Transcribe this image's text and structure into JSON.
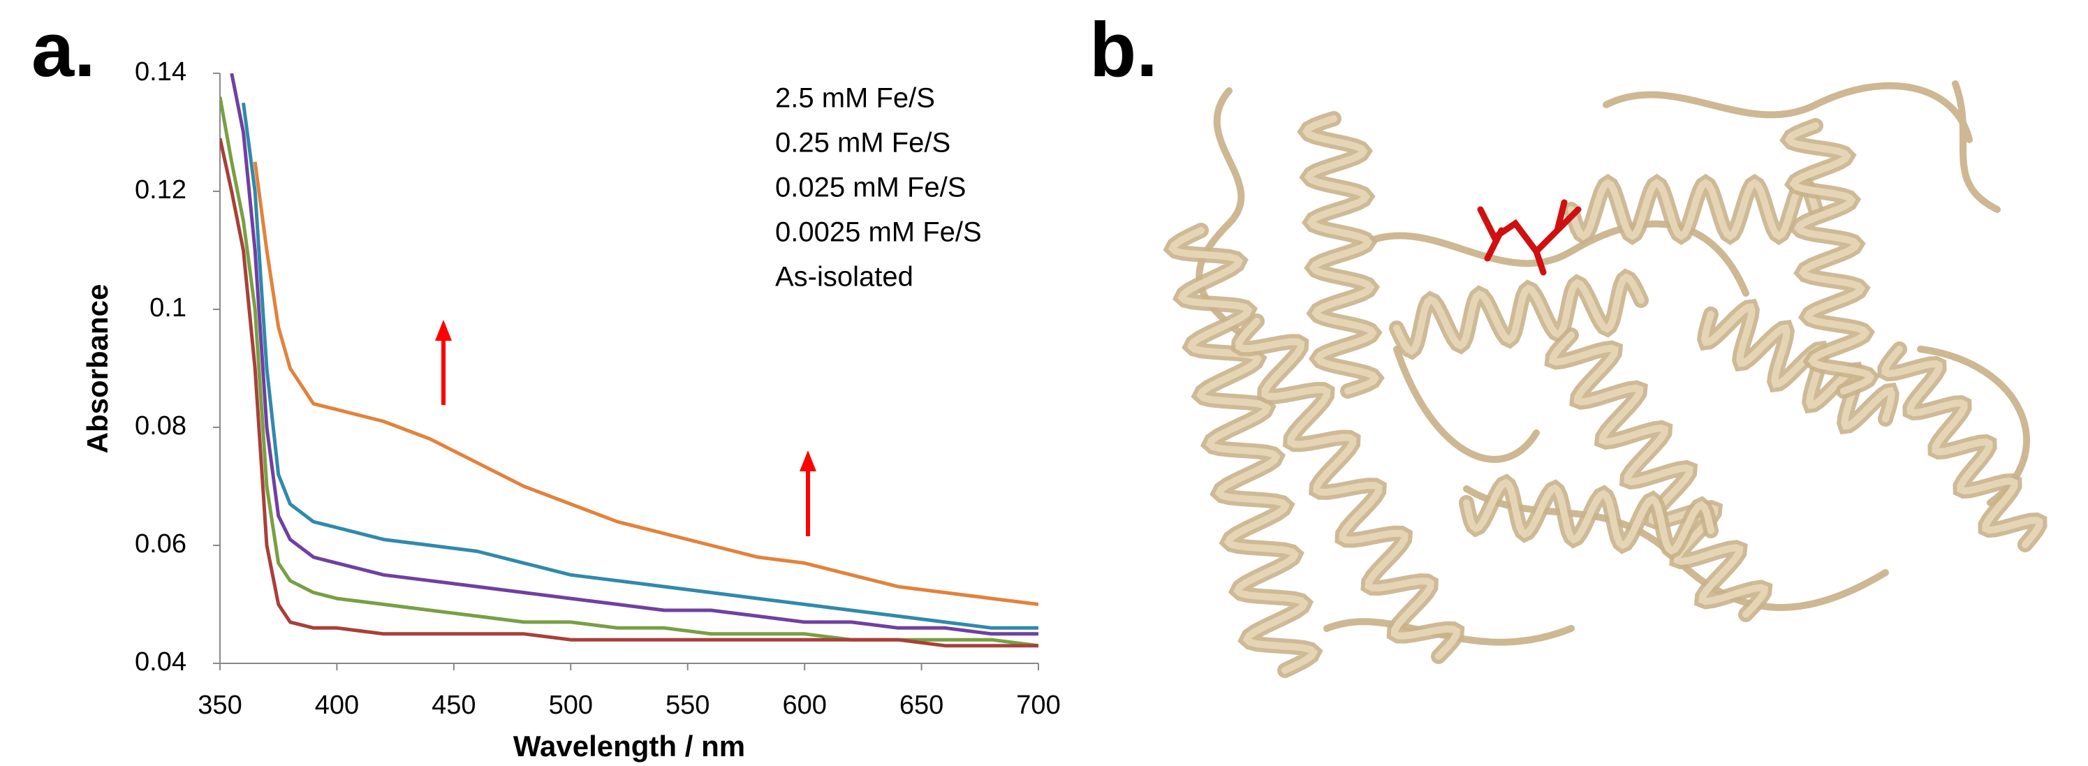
{
  "panel_labels": [
    "a.",
    "b."
  ],
  "chart_data": {
    "type": "line",
    "x_label": "Wavelength / nm",
    "y_label": "Absorbance",
    "x": [
      350,
      355,
      360,
      365,
      370,
      375,
      380,
      390,
      400,
      420,
      440,
      460,
      480,
      500,
      520,
      540,
      560,
      580,
      600,
      620,
      640,
      660,
      680,
      700
    ],
    "series": [
      {
        "name": "2.5 mM Fe/S",
        "color": "#e3823b",
        "values": [
          null,
          null,
          null,
          0.125,
          0.11,
          0.097,
          0.09,
          0.084,
          0.083,
          0.081,
          0.078,
          0.074,
          0.07,
          0.067,
          0.064,
          0.062,
          0.06,
          0.058,
          0.057,
          0.055,
          0.053,
          0.052,
          0.051,
          0.05
        ]
      },
      {
        "name": "0.25 mM Fe/S",
        "color": "#2f8aab",
        "values": [
          null,
          null,
          0.135,
          0.12,
          0.09,
          0.072,
          0.067,
          0.064,
          0.063,
          0.061,
          0.06,
          0.059,
          0.057,
          0.055,
          0.054,
          0.053,
          0.052,
          0.051,
          0.05,
          0.049,
          0.048,
          0.047,
          0.046,
          0.046
        ]
      },
      {
        "name": "0.025 mM Fe/S",
        "color": "#7040a0",
        "values": [
          null,
          0.14,
          0.13,
          0.11,
          0.08,
          0.065,
          0.061,
          0.058,
          0.057,
          0.055,
          0.054,
          0.053,
          0.052,
          0.051,
          0.05,
          0.049,
          0.049,
          0.048,
          0.047,
          0.047,
          0.046,
          0.046,
          0.045,
          0.045
        ]
      },
      {
        "name": "0.0025 mM Fe/S",
        "color": "#77a043",
        "values": [
          0.136,
          0.125,
          0.115,
          0.1,
          0.07,
          0.057,
          0.054,
          0.052,
          0.051,
          0.05,
          0.049,
          0.048,
          0.047,
          0.047,
          0.046,
          0.046,
          0.045,
          0.045,
          0.045,
          0.044,
          0.044,
          0.044,
          0.044,
          0.043
        ]
      },
      {
        "name": "As-isolated",
        "color": "#a8403a",
        "values": [
          0.129,
          0.12,
          0.11,
          0.09,
          0.06,
          0.05,
          0.047,
          0.046,
          0.046,
          0.045,
          0.045,
          0.045,
          0.045,
          0.044,
          0.044,
          0.044,
          0.044,
          0.044,
          0.044,
          0.044,
          0.044,
          0.043,
          0.043,
          0.043
        ]
      }
    ],
    "xlim": [
      350,
      700
    ],
    "ylim": [
      0.04,
      0.14
    ],
    "xticks": [
      350,
      400,
      450,
      500,
      550,
      600,
      650,
      700
    ],
    "yticks": [
      0.04,
      0.06,
      0.08,
      0.1,
      0.12,
      0.14
    ],
    "grid": false
  }
}
